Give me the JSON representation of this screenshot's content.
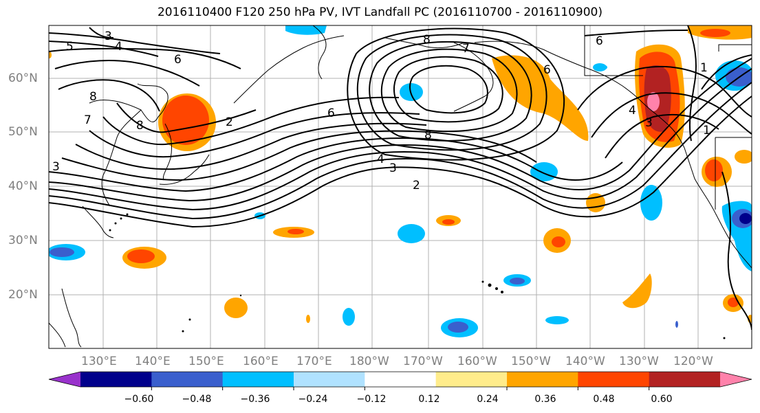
{
  "title": "2016110400 F120 250 hPa PV, IVT Landfall PC (2016110700 - 2016110900)",
  "lat_labels": [
    "60°N",
    "50°N",
    "40°N",
    "30°N",
    "20°N"
  ],
  "lon_labels": [
    "130°E",
    "140°E",
    "150°E",
    "160°E",
    "170°E",
    "180°W",
    "170°W",
    "160°W",
    "150°W",
    "140°W",
    "130°W",
    "120°W"
  ],
  "contour_labels": [
    "3",
    "5",
    "4",
    "6",
    "8",
    "7",
    "8",
    "2",
    "6",
    "4",
    "3",
    "2",
    "8",
    "6",
    "8",
    "7",
    "6",
    "1",
    "4",
    "3",
    "1",
    "3"
  ],
  "colorbar": {
    "tick_labels": [
      "−0.60",
      "−0.48",
      "−0.36",
      "−0.24",
      "−0.12",
      "0.12",
      "0.24",
      "0.36",
      "0.48",
      "0.60"
    ],
    "colors": [
      "#9932cc",
      "#00008b",
      "#3a5fcd",
      "#00bfff",
      "#b0e2ff",
      "#ffffff",
      "#ffec8b",
      "#ffa500",
      "#ff4500",
      "#b22222",
      "#ff82ab"
    ]
  },
  "colors": {
    "land_outline": "#000000",
    "grid": "#b0b0b0",
    "contour": "#000000"
  }
}
